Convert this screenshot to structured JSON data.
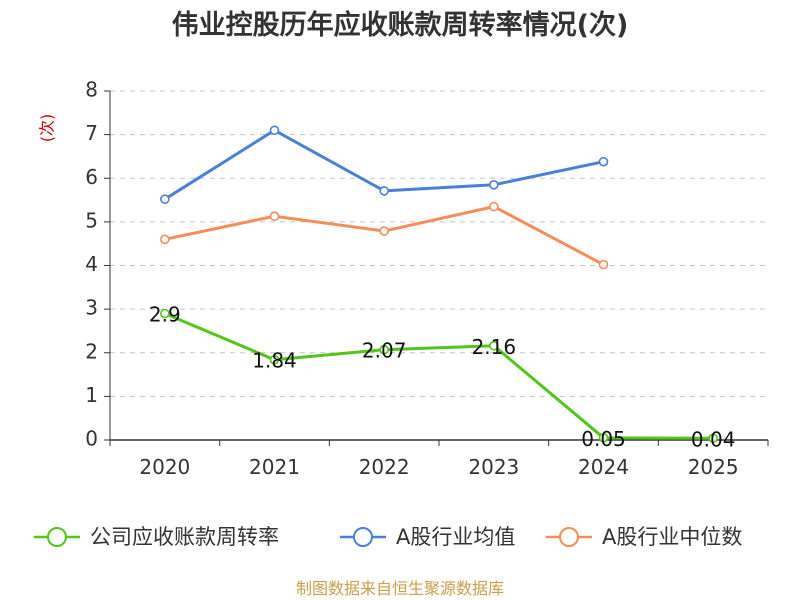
{
  "chart_data": {
    "type": "line",
    "title": "伟业控股历年应收账款周转率情况(次)",
    "ylabel": "(次)",
    "xlabel": "",
    "categories": [
      "2020",
      "2021",
      "2022",
      "2023",
      "2024",
      "2025"
    ],
    "y_ticks": [
      "0",
      "1",
      "2",
      "3",
      "4",
      "5",
      "6",
      "7",
      "8"
    ],
    "ylim": [
      0,
      8
    ],
    "grid": true,
    "legend_position": "bottom",
    "series": [
      {
        "name": "公司应收账款周转率",
        "color": "#52c41a",
        "values": [
          2.9,
          1.84,
          2.07,
          2.16,
          0.05,
          0.04
        ],
        "labels": [
          "2.9",
          "1.84",
          "2.07",
          "2.16",
          "0.05",
          "0.04"
        ],
        "show_labels": true
      },
      {
        "name": "A股行业均值",
        "color": "#4a7fd8",
        "values": [
          5.52,
          7.1,
          5.71,
          5.85,
          6.38,
          null
        ],
        "show_labels": false
      },
      {
        "name": "A股行业中位数",
        "color": "#f58d5a",
        "values": [
          4.6,
          5.13,
          4.79,
          5.35,
          4.02,
          null
        ],
        "show_labels": false
      }
    ],
    "source": "制图数据来自恒生聚源数据库"
  }
}
